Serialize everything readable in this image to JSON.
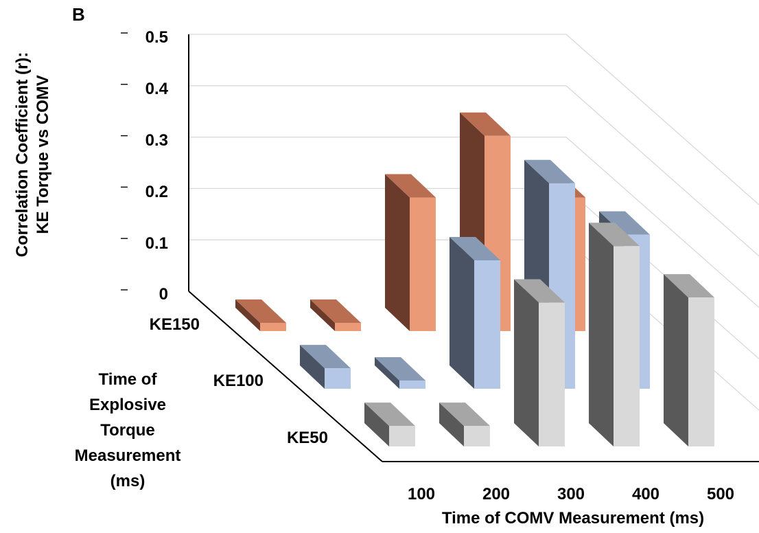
{
  "chart_data": {
    "type": "bar",
    "panel_label": "B",
    "ylabel": [
      "Correlation Coefficient (r):",
      "KE Torque vs COMV"
    ],
    "xlabel": "Time of COMV Measurement (ms)",
    "zlabel": [
      "Time  of",
      "Explosive",
      "Torque",
      "Measurement",
      "(ms)"
    ],
    "ylim": [
      0,
      0.5
    ],
    "y_ticks": [
      "0",
      "0.1",
      "0.2",
      "0.3",
      "0.4",
      "0.5"
    ],
    "categories": [
      "100",
      "200",
      "300",
      "400",
      "500"
    ],
    "grid": true,
    "series": [
      {
        "name": "KE150",
        "values": [
          0.01,
          0.01,
          0.26,
          0.38,
          0.26
        ],
        "color_front": "#EB9A78",
        "color_side": "#6A3B2A",
        "color_top": "#B96E52"
      },
      {
        "name": "KE100",
        "values": [
          0.04,
          0.01,
          0.25,
          0.4,
          0.3
        ],
        "color_front": "#B4C7E7",
        "color_side": "#4A5364",
        "color_top": "#8899B3"
      },
      {
        "name": "KE50",
        "values": [
          0.04,
          0.04,
          0.28,
          0.39,
          0.29
        ],
        "color_front": "#D9D9D9",
        "color_side": "#595959",
        "color_top": "#A6A6A6"
      }
    ]
  }
}
